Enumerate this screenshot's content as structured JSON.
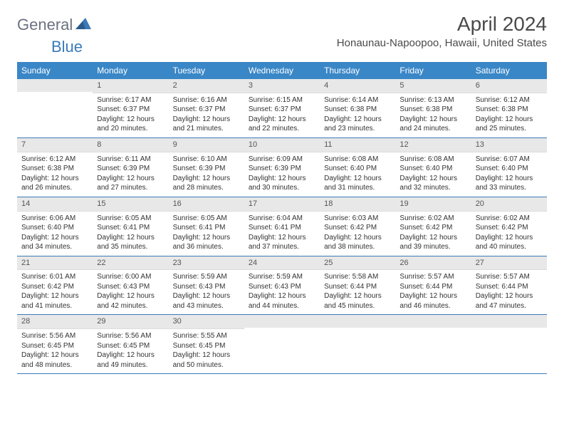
{
  "logo": {
    "text1": "General",
    "text2": "Blue"
  },
  "header": {
    "month": "April 2024",
    "location": "Honaunau-Napoopoo, Hawaii, United States"
  },
  "colors": {
    "header_bg": "#3a87c7",
    "header_text": "#ffffff",
    "daynum_bg": "#e8e8e8",
    "border": "#3a7ab8",
    "text": "#333333",
    "logo_gray": "#6b7280",
    "logo_blue": "#3a7ab8"
  },
  "day_names": [
    "Sunday",
    "Monday",
    "Tuesday",
    "Wednesday",
    "Thursday",
    "Friday",
    "Saturday"
  ],
  "weeks": [
    [
      {
        "num": "",
        "lines": []
      },
      {
        "num": "1",
        "lines": [
          "Sunrise: 6:17 AM",
          "Sunset: 6:37 PM",
          "Daylight: 12 hours",
          "and 20 minutes."
        ]
      },
      {
        "num": "2",
        "lines": [
          "Sunrise: 6:16 AM",
          "Sunset: 6:37 PM",
          "Daylight: 12 hours",
          "and 21 minutes."
        ]
      },
      {
        "num": "3",
        "lines": [
          "Sunrise: 6:15 AM",
          "Sunset: 6:37 PM",
          "Daylight: 12 hours",
          "and 22 minutes."
        ]
      },
      {
        "num": "4",
        "lines": [
          "Sunrise: 6:14 AM",
          "Sunset: 6:38 PM",
          "Daylight: 12 hours",
          "and 23 minutes."
        ]
      },
      {
        "num": "5",
        "lines": [
          "Sunrise: 6:13 AM",
          "Sunset: 6:38 PM",
          "Daylight: 12 hours",
          "and 24 minutes."
        ]
      },
      {
        "num": "6",
        "lines": [
          "Sunrise: 6:12 AM",
          "Sunset: 6:38 PM",
          "Daylight: 12 hours",
          "and 25 minutes."
        ]
      }
    ],
    [
      {
        "num": "7",
        "lines": [
          "Sunrise: 6:12 AM",
          "Sunset: 6:38 PM",
          "Daylight: 12 hours",
          "and 26 minutes."
        ]
      },
      {
        "num": "8",
        "lines": [
          "Sunrise: 6:11 AM",
          "Sunset: 6:39 PM",
          "Daylight: 12 hours",
          "and 27 minutes."
        ]
      },
      {
        "num": "9",
        "lines": [
          "Sunrise: 6:10 AM",
          "Sunset: 6:39 PM",
          "Daylight: 12 hours",
          "and 28 minutes."
        ]
      },
      {
        "num": "10",
        "lines": [
          "Sunrise: 6:09 AM",
          "Sunset: 6:39 PM",
          "Daylight: 12 hours",
          "and 30 minutes."
        ]
      },
      {
        "num": "11",
        "lines": [
          "Sunrise: 6:08 AM",
          "Sunset: 6:40 PM",
          "Daylight: 12 hours",
          "and 31 minutes."
        ]
      },
      {
        "num": "12",
        "lines": [
          "Sunrise: 6:08 AM",
          "Sunset: 6:40 PM",
          "Daylight: 12 hours",
          "and 32 minutes."
        ]
      },
      {
        "num": "13",
        "lines": [
          "Sunrise: 6:07 AM",
          "Sunset: 6:40 PM",
          "Daylight: 12 hours",
          "and 33 minutes."
        ]
      }
    ],
    [
      {
        "num": "14",
        "lines": [
          "Sunrise: 6:06 AM",
          "Sunset: 6:40 PM",
          "Daylight: 12 hours",
          "and 34 minutes."
        ]
      },
      {
        "num": "15",
        "lines": [
          "Sunrise: 6:05 AM",
          "Sunset: 6:41 PM",
          "Daylight: 12 hours",
          "and 35 minutes."
        ]
      },
      {
        "num": "16",
        "lines": [
          "Sunrise: 6:05 AM",
          "Sunset: 6:41 PM",
          "Daylight: 12 hours",
          "and 36 minutes."
        ]
      },
      {
        "num": "17",
        "lines": [
          "Sunrise: 6:04 AM",
          "Sunset: 6:41 PM",
          "Daylight: 12 hours",
          "and 37 minutes."
        ]
      },
      {
        "num": "18",
        "lines": [
          "Sunrise: 6:03 AM",
          "Sunset: 6:42 PM",
          "Daylight: 12 hours",
          "and 38 minutes."
        ]
      },
      {
        "num": "19",
        "lines": [
          "Sunrise: 6:02 AM",
          "Sunset: 6:42 PM",
          "Daylight: 12 hours",
          "and 39 minutes."
        ]
      },
      {
        "num": "20",
        "lines": [
          "Sunrise: 6:02 AM",
          "Sunset: 6:42 PM",
          "Daylight: 12 hours",
          "and 40 minutes."
        ]
      }
    ],
    [
      {
        "num": "21",
        "lines": [
          "Sunrise: 6:01 AM",
          "Sunset: 6:42 PM",
          "Daylight: 12 hours",
          "and 41 minutes."
        ]
      },
      {
        "num": "22",
        "lines": [
          "Sunrise: 6:00 AM",
          "Sunset: 6:43 PM",
          "Daylight: 12 hours",
          "and 42 minutes."
        ]
      },
      {
        "num": "23",
        "lines": [
          "Sunrise: 5:59 AM",
          "Sunset: 6:43 PM",
          "Daylight: 12 hours",
          "and 43 minutes."
        ]
      },
      {
        "num": "24",
        "lines": [
          "Sunrise: 5:59 AM",
          "Sunset: 6:43 PM",
          "Daylight: 12 hours",
          "and 44 minutes."
        ]
      },
      {
        "num": "25",
        "lines": [
          "Sunrise: 5:58 AM",
          "Sunset: 6:44 PM",
          "Daylight: 12 hours",
          "and 45 minutes."
        ]
      },
      {
        "num": "26",
        "lines": [
          "Sunrise: 5:57 AM",
          "Sunset: 6:44 PM",
          "Daylight: 12 hours",
          "and 46 minutes."
        ]
      },
      {
        "num": "27",
        "lines": [
          "Sunrise: 5:57 AM",
          "Sunset: 6:44 PM",
          "Daylight: 12 hours",
          "and 47 minutes."
        ]
      }
    ],
    [
      {
        "num": "28",
        "lines": [
          "Sunrise: 5:56 AM",
          "Sunset: 6:45 PM",
          "Daylight: 12 hours",
          "and 48 minutes."
        ]
      },
      {
        "num": "29",
        "lines": [
          "Sunrise: 5:56 AM",
          "Sunset: 6:45 PM",
          "Daylight: 12 hours",
          "and 49 minutes."
        ]
      },
      {
        "num": "30",
        "lines": [
          "Sunrise: 5:55 AM",
          "Sunset: 6:45 PM",
          "Daylight: 12 hours",
          "and 50 minutes."
        ]
      },
      {
        "num": "",
        "lines": []
      },
      {
        "num": "",
        "lines": []
      },
      {
        "num": "",
        "lines": []
      },
      {
        "num": "",
        "lines": []
      }
    ]
  ]
}
